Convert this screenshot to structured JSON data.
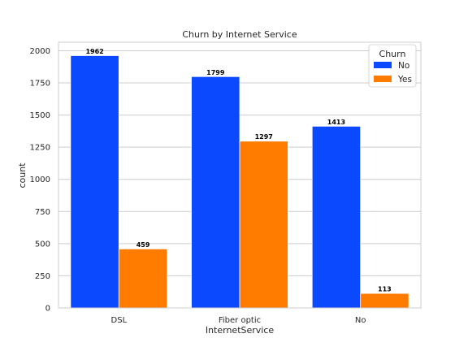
{
  "chart_data": {
    "type": "bar",
    "title": "Churn by Internet Service",
    "xlabel": "InternetService",
    "ylabel": "count",
    "categories": [
      "DSL",
      "Fiber optic",
      "No"
    ],
    "series": [
      {
        "name": "No",
        "values": [
          1962,
          1799,
          1413
        ],
        "color": "#0B49FF"
      },
      {
        "name": "Yes",
        "values": [
          459,
          1297,
          113
        ],
        "color": "#FF7C00"
      }
    ],
    "ylim": [
      0,
      2066
    ],
    "yticks": [
      0,
      250,
      500,
      750,
      1000,
      1250,
      1500,
      1750,
      2000
    ],
    "grid": "horizontal",
    "legend": {
      "title": "Churn",
      "position": "top-right"
    },
    "data_labels": true
  }
}
